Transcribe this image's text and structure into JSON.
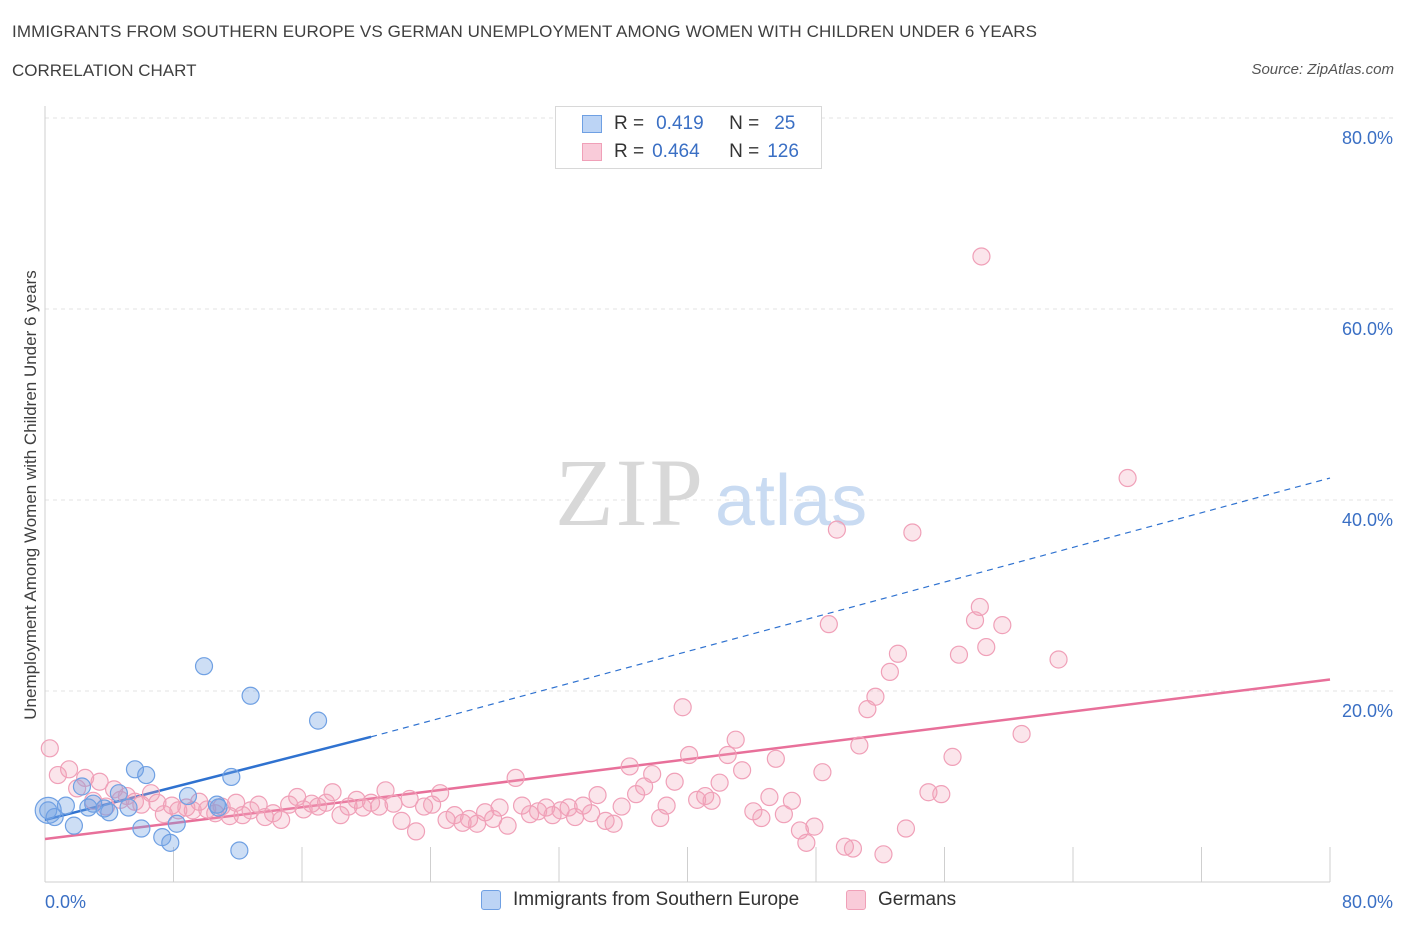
{
  "title": "IMMIGRANTS FROM SOUTHERN EUROPE VS GERMAN UNEMPLOYMENT AMONG WOMEN WITH CHILDREN UNDER 6 YEARS",
  "subtitle": "CORRELATION CHART",
  "source": "Source: ZipAtlas.com",
  "watermark": {
    "zip": "ZIP",
    "atlas": "atlas"
  },
  "colors": {
    "blue": "#6fa0e3",
    "blue_line": "#2f72d0",
    "pink": "#f0a0b8",
    "pink_line": "#e8709a",
    "axis_text": "#3a6fc4"
  },
  "legend": {
    "r_label": "R =",
    "n_label": "N =",
    "rows": [
      {
        "r": "0.419",
        "n": "25"
      },
      {
        "r": "0.464",
        "n": "126"
      }
    ]
  },
  "bottom_legend": [
    "Immigrants from Southern Europe",
    "Germans"
  ],
  "chart_data": {
    "type": "scatter",
    "title": "IMMIGRANTS FROM SOUTHERN EUROPE VS GERMAN UNEMPLOYMENT AMONG WOMEN WITH CHILDREN UNDER 6 YEARS",
    "xlabel": "",
    "ylabel": "Unemployment Among Women with Children Under 6 years",
    "xlim": [
      0,
      80
    ],
    "ylim": [
      0,
      80
    ],
    "x_tick_labels": [
      "0.0%",
      "80.0%"
    ],
    "y_tick_labels": [
      "20.0%",
      "40.0%",
      "60.0%",
      "80.0%"
    ],
    "y_ticks": [
      20,
      40,
      60,
      80
    ],
    "grid": true,
    "series": [
      {
        "name": "Immigrants from Southern Europe",
        "color": "#6fa0e3",
        "trend": {
          "x0": 0,
          "y0": 6.5,
          "x1": 20.3,
          "y1": 15.2,
          "dashed_to_x": 80,
          "dashed_to_y": 42.3
        },
        "points": [
          [
            0.2,
            7.5
          ],
          [
            0.6,
            6.8
          ],
          [
            1.3,
            8.0
          ],
          [
            1.8,
            5.9
          ],
          [
            2.3,
            10.0
          ],
          [
            2.7,
            7.8
          ],
          [
            3.0,
            8.2
          ],
          [
            3.7,
            7.7
          ],
          [
            4.0,
            7.3
          ],
          [
            4.6,
            9.3
          ],
          [
            5.2,
            7.8
          ],
          [
            5.6,
            11.8
          ],
          [
            6.3,
            11.2
          ],
          [
            6.0,
            5.6
          ],
          [
            7.3,
            4.7
          ],
          [
            7.8,
            4.1
          ],
          [
            8.2,
            6.1
          ],
          [
            8.9,
            9.0
          ],
          [
            9.9,
            22.6
          ],
          [
            10.7,
            8.1
          ],
          [
            11.6,
            11.0
          ],
          [
            12.1,
            3.3
          ],
          [
            12.8,
            19.5
          ],
          [
            17.0,
            16.9
          ],
          [
            10.8,
            7.8
          ]
        ]
      },
      {
        "name": "Germans",
        "color": "#f0a0b8",
        "trend": {
          "x0": 0,
          "y0": 4.5,
          "x1": 80,
          "y1": 21.2
        },
        "points": [
          [
            0.3,
            14.0
          ],
          [
            0.8,
            11.2
          ],
          [
            1.5,
            11.8
          ],
          [
            2.0,
            9.8
          ],
          [
            2.5,
            10.9
          ],
          [
            3.0,
            8.5
          ],
          [
            3.4,
            10.5
          ],
          [
            3.8,
            7.9
          ],
          [
            4.3,
            9.7
          ],
          [
            4.7,
            8.6
          ],
          [
            5.1,
            9.0
          ],
          [
            5.6,
            8.4
          ],
          [
            6.0,
            8.1
          ],
          [
            6.6,
            9.3
          ],
          [
            7.0,
            8.3
          ],
          [
            7.4,
            7.1
          ],
          [
            7.9,
            8.0
          ],
          [
            8.3,
            7.5
          ],
          [
            8.8,
            7.8
          ],
          [
            9.2,
            7.5
          ],
          [
            9.6,
            8.4
          ],
          [
            10.1,
            7.6
          ],
          [
            10.6,
            7.2
          ],
          [
            11.0,
            7.9
          ],
          [
            11.5,
            6.9
          ],
          [
            11.9,
            8.3
          ],
          [
            12.3,
            7.0
          ],
          [
            12.8,
            7.5
          ],
          [
            13.3,
            8.1
          ],
          [
            13.7,
            6.8
          ],
          [
            14.2,
            7.2
          ],
          [
            14.7,
            6.5
          ],
          [
            15.2,
            8.1
          ],
          [
            15.7,
            8.9
          ],
          [
            16.1,
            7.6
          ],
          [
            16.6,
            8.2
          ],
          [
            17.0,
            7.9
          ],
          [
            17.5,
            8.3
          ],
          [
            17.9,
            9.4
          ],
          [
            18.4,
            7.0
          ],
          [
            18.9,
            7.9
          ],
          [
            19.4,
            8.6
          ],
          [
            19.8,
            7.8
          ],
          [
            20.3,
            8.3
          ],
          [
            20.8,
            7.9
          ],
          [
            21.2,
            9.6
          ],
          [
            21.7,
            8.2
          ],
          [
            22.2,
            6.4
          ],
          [
            22.7,
            8.7
          ],
          [
            23.1,
            5.3
          ],
          [
            23.6,
            7.9
          ],
          [
            24.1,
            8.1
          ],
          [
            24.6,
            9.3
          ],
          [
            25.0,
            6.5
          ],
          [
            25.5,
            7.0
          ],
          [
            26.0,
            6.2
          ],
          [
            26.4,
            6.6
          ],
          [
            26.9,
            6.1
          ],
          [
            27.4,
            7.3
          ],
          [
            27.9,
            6.6
          ],
          [
            28.3,
            7.8
          ],
          [
            28.8,
            5.9
          ],
          [
            29.3,
            10.9
          ],
          [
            29.7,
            8.0
          ],
          [
            30.2,
            7.1
          ],
          [
            30.7,
            7.4
          ],
          [
            31.2,
            7.8
          ],
          [
            31.6,
            7.0
          ],
          [
            32.1,
            7.5
          ],
          [
            32.6,
            7.8
          ],
          [
            33.0,
            6.8
          ],
          [
            33.5,
            8.0
          ],
          [
            34.0,
            7.2
          ],
          [
            34.4,
            9.1
          ],
          [
            35.4,
            6.1
          ],
          [
            34.9,
            6.4
          ],
          [
            35.9,
            7.9
          ],
          [
            36.4,
            12.1
          ],
          [
            36.8,
            9.2
          ],
          [
            37.3,
            10.0
          ],
          [
            37.8,
            11.3
          ],
          [
            38.3,
            6.7
          ],
          [
            38.7,
            8.0
          ],
          [
            39.2,
            10.5
          ],
          [
            39.7,
            18.3
          ],
          [
            40.1,
            13.3
          ],
          [
            40.6,
            8.6
          ],
          [
            41.1,
            9.0
          ],
          [
            41.5,
            8.5
          ],
          [
            42.0,
            10.4
          ],
          [
            42.5,
            13.3
          ],
          [
            43.0,
            14.9
          ],
          [
            43.4,
            11.7
          ],
          [
            44.1,
            7.4
          ],
          [
            44.6,
            6.7
          ],
          [
            45.1,
            8.9
          ],
          [
            45.5,
            12.9
          ],
          [
            46.0,
            7.1
          ],
          [
            46.5,
            8.5
          ],
          [
            47.0,
            5.4
          ],
          [
            47.4,
            4.1
          ],
          [
            47.9,
            5.8
          ],
          [
            48.4,
            11.5
          ],
          [
            48.8,
            27.0
          ],
          [
            49.3,
            36.9
          ],
          [
            49.8,
            3.7
          ],
          [
            50.3,
            3.5
          ],
          [
            50.7,
            14.3
          ],
          [
            51.2,
            18.1
          ],
          [
            51.7,
            19.4
          ],
          [
            52.2,
            2.9
          ],
          [
            52.6,
            22.0
          ],
          [
            53.1,
            23.9
          ],
          [
            53.6,
            5.6
          ],
          [
            54.0,
            36.6
          ],
          [
            55.0,
            9.4
          ],
          [
            55.8,
            9.2
          ],
          [
            56.5,
            13.1
          ],
          [
            56.9,
            23.8
          ],
          [
            57.9,
            27.4
          ],
          [
            58.2,
            28.8
          ],
          [
            58.6,
            24.6
          ],
          [
            59.6,
            26.9
          ],
          [
            60.8,
            15.5
          ],
          [
            63.1,
            23.3
          ],
          [
            67.4,
            42.3
          ],
          [
            58.3,
            65.5
          ]
        ]
      }
    ]
  }
}
